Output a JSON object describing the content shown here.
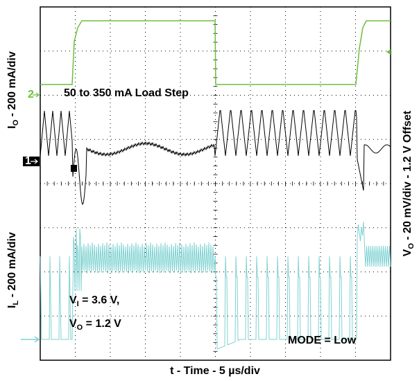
{
  "labels": {
    "io_axis": {
      "main": "I",
      "sub": "O",
      "rest": " - 200 mA/div"
    },
    "il_axis": {
      "main": "I",
      "sub": "L",
      "rest": " - 200 mA/div"
    },
    "vo_axis": {
      "main": "V",
      "sub": "O",
      "rest": " - 20 mV/div - 1.2 V Offset"
    },
    "time_axis": "t - Time - 5 µs/div",
    "load_step": "50 to 350 mA Load Step",
    "vi": {
      "main": "V",
      "sub": "I",
      "rest": " = 3.6 V,"
    },
    "vo": {
      "main": "V",
      "sub": "O",
      "rest": " = 1.2 V"
    },
    "mode": "MODE = Low",
    "ch1": "1",
    "ch2": "2"
  }
}
